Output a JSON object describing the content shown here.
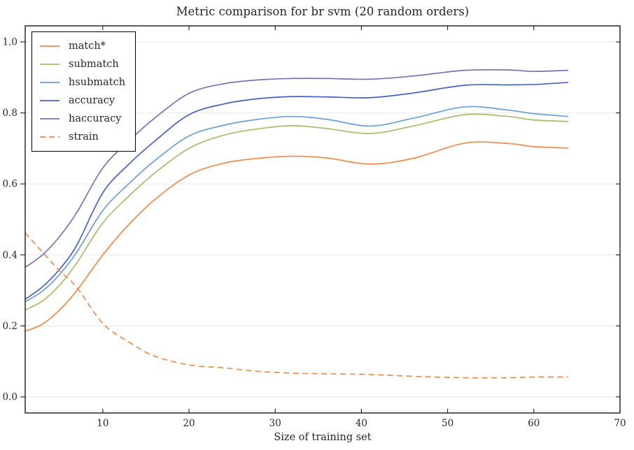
{
  "chart_data": {
    "type": "line",
    "title": "Metric comparison for br svm (20 random orders)",
    "xlabel": "Size of training set",
    "ylabel": "",
    "xlim": [
      1,
      70
    ],
    "ylim": [
      -0.045,
      1.045
    ],
    "xticks": [
      10,
      20,
      30,
      40,
      50,
      60,
      70
    ],
    "yticks": [
      0.0,
      0.2,
      0.4,
      0.6,
      0.8,
      1.0
    ],
    "grid": "horizontal",
    "grid_color": "#e8e8e8",
    "spine_color": "#1a1a1a",
    "legend_position": "upper left",
    "x": [
      1,
      3,
      5,
      7,
      10,
      13,
      16,
      20,
      24,
      28,
      32,
      36,
      41,
      46,
      52,
      57,
      60,
      64
    ],
    "series": [
      {
        "name": "match*",
        "color": "#ee8a4e",
        "style": "solid",
        "values": [
          0.185,
          0.205,
          0.245,
          0.3,
          0.4,
          0.485,
          0.555,
          0.625,
          0.658,
          0.672,
          0.678,
          0.673,
          0.656,
          0.672,
          0.715,
          0.714,
          0.705,
          0.701
        ]
      },
      {
        "name": "submatch",
        "color": "#a9ba6e",
        "style": "solid",
        "values": [
          0.245,
          0.27,
          0.315,
          0.378,
          0.49,
          0.565,
          0.63,
          0.7,
          0.737,
          0.755,
          0.764,
          0.756,
          0.742,
          0.763,
          0.795,
          0.79,
          0.78,
          0.776
        ]
      },
      {
        "name": "hsubmatch",
        "color": "#6d9ed6",
        "style": "solid",
        "values": [
          0.268,
          0.298,
          0.345,
          0.408,
          0.525,
          0.6,
          0.665,
          0.735,
          0.765,
          0.782,
          0.79,
          0.782,
          0.763,
          0.785,
          0.817,
          0.808,
          0.798,
          0.79
        ]
      },
      {
        "name": "accuracy",
        "color": "#4761c2",
        "style": "solid",
        "values": [
          0.275,
          0.31,
          0.36,
          0.428,
          0.575,
          0.655,
          0.72,
          0.795,
          0.825,
          0.84,
          0.846,
          0.845,
          0.843,
          0.856,
          0.878,
          0.879,
          0.88,
          0.886
        ]
      },
      {
        "name": "haccuracy",
        "color": "#7b70b5",
        "style": "solid",
        "values": [
          0.365,
          0.4,
          0.452,
          0.52,
          0.645,
          0.72,
          0.785,
          0.855,
          0.882,
          0.893,
          0.897,
          0.897,
          0.895,
          0.904,
          0.92,
          0.921,
          0.917,
          0.92
        ]
      },
      {
        "name": "strain",
        "color": "#ee8a4e",
        "style": "dashed",
        "values": [
          0.462,
          0.408,
          0.355,
          0.308,
          0.207,
          0.155,
          0.115,
          0.09,
          0.082,
          0.072,
          0.067,
          0.065,
          0.063,
          0.058,
          0.054,
          0.054,
          0.056,
          0.056
        ]
      }
    ]
  }
}
